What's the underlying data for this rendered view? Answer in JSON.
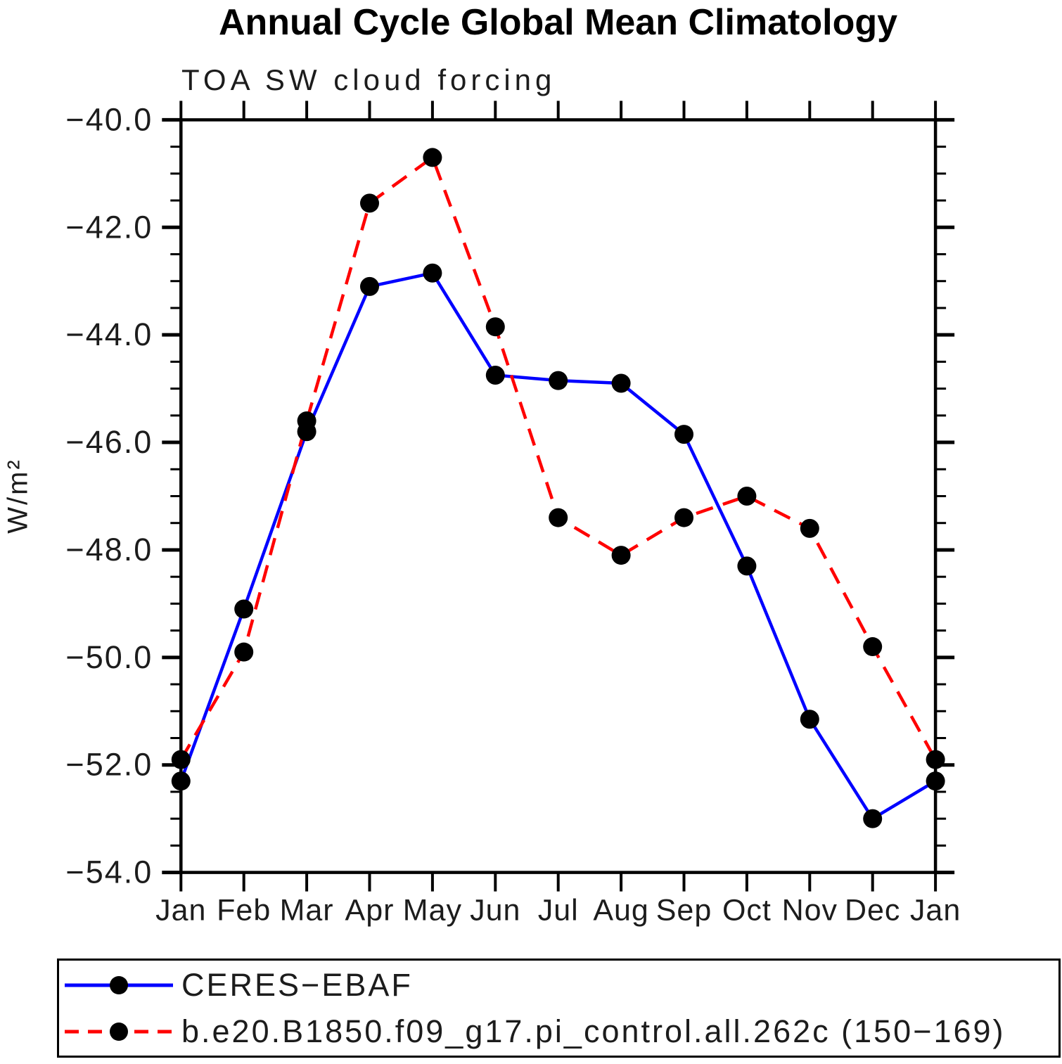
{
  "title": "Annual Cycle Global Mean Climatology",
  "subtitle": "TOA SW cloud forcing",
  "chart_data": {
    "type": "line",
    "title": "Annual Cycle Global Mean Climatology",
    "subtitle": "TOA SW cloud forcing",
    "xlabel": "",
    "ylabel": "W/m²",
    "x_categories": [
      "Jan",
      "Feb",
      "Mar",
      "Apr",
      "May",
      "Jun",
      "Jul",
      "Aug",
      "Sep",
      "Oct",
      "Nov",
      "Dec",
      "Jan"
    ],
    "ylim": [
      -54.0,
      -40.0
    ],
    "ytick_major_values": [
      -40.0,
      -42.0,
      -44.0,
      -46.0,
      -48.0,
      -50.0,
      -52.0,
      -54.0
    ],
    "ytick_major_labels": [
      "−40.0",
      "−42.0",
      "−44.0",
      "−46.0",
      "−48.0",
      "−50.0",
      "−52.0",
      "−54.0"
    ],
    "ytick_minor_step": 0.5,
    "grid": false,
    "legend_position": "bottom",
    "axis_color": "#000000",
    "marker_color": "#000000",
    "series": [
      {
        "name": "CERES−EBAF",
        "color": "#0000ff",
        "line_style": "solid",
        "marker": "circle",
        "values": [
          -52.3,
          -49.1,
          -45.8,
          -43.1,
          -42.85,
          -44.75,
          -44.85,
          -44.9,
          -45.85,
          -48.3,
          -51.15,
          -53.0,
          -52.3
        ]
      },
      {
        "name": "b.e20.B1850.f09_g17.pi_control.all.262c (150−169)",
        "color": "#ff0000",
        "line_style": "dashed",
        "marker": "circle",
        "values": [
          -51.9,
          -49.9,
          -45.6,
          -41.55,
          -40.7,
          -43.85,
          -47.4,
          -48.1,
          -47.4,
          -47.0,
          -47.6,
          -49.8,
          -51.9
        ]
      }
    ]
  }
}
